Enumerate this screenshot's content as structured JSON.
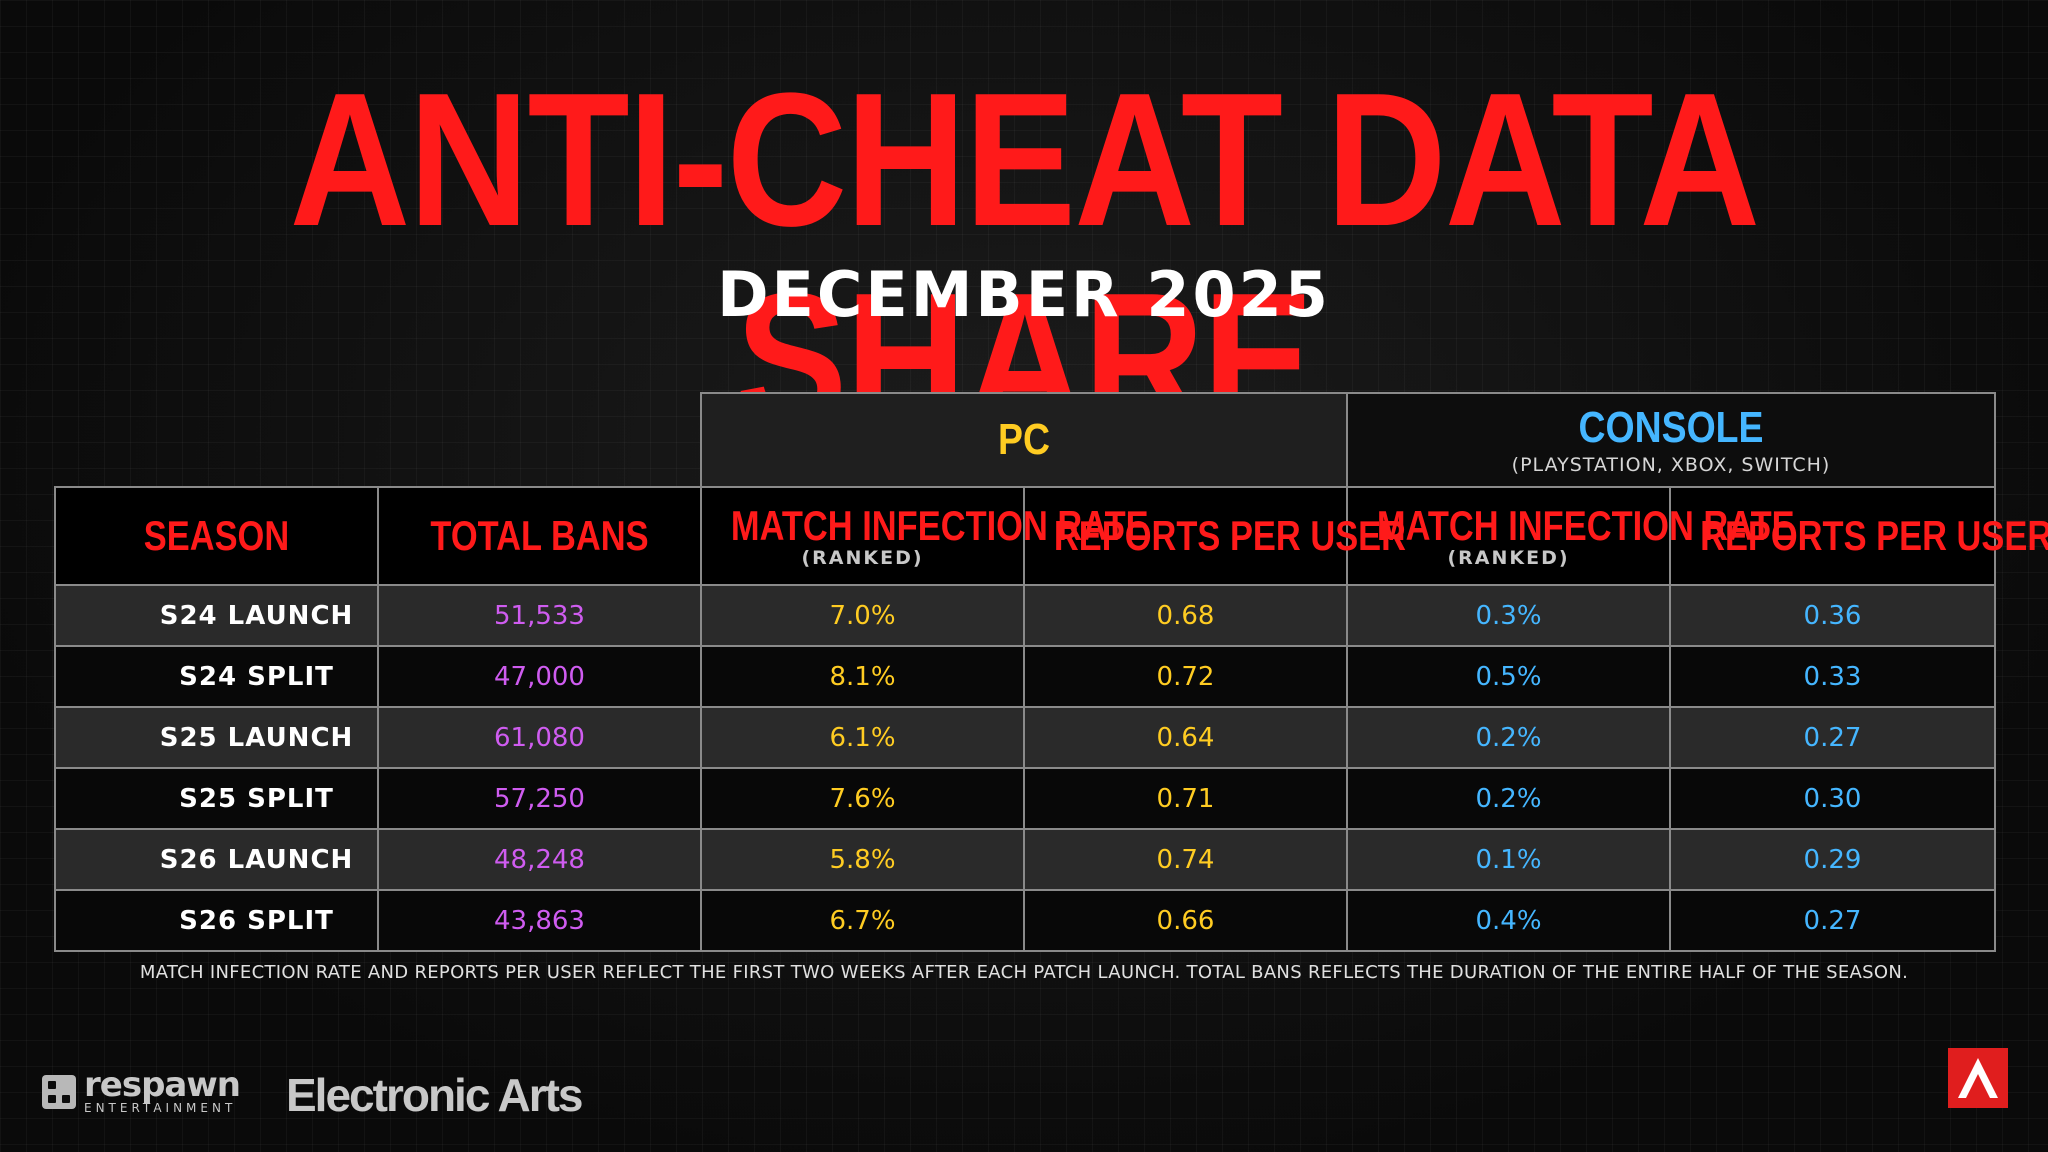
{
  "title": "ANTI-CHEAT DATA SHARE",
  "subtitle": "DECEMBER 2025",
  "groups": {
    "pc": {
      "name": "PC",
      "sub": ""
    },
    "console": {
      "name": "CONSOLE",
      "sub": "(PLAYSTATION, XBOX, SWITCH)"
    }
  },
  "headers": {
    "season": "SEASON",
    "total_bans": "TOTAL BANS",
    "pc_mir": "MATCH INFECTION RATE",
    "pc_mir_sub": "(RANKED)",
    "pc_rpu": "REPORTS PER USER",
    "con_mir": "MATCH INFECTION RATE",
    "con_mir_sub": "(RANKED)",
    "con_rpu": "REPORTS PER USER"
  },
  "rows": [
    {
      "season": "S24 LAUNCH",
      "bans": "51,533",
      "pc_mir": "7.0%",
      "pc_rpu": "0.68",
      "con_mir": "0.3%",
      "con_rpu": "0.36"
    },
    {
      "season": "S24 SPLIT",
      "bans": "47,000",
      "pc_mir": "8.1%",
      "pc_rpu": "0.72",
      "con_mir": "0.5%",
      "con_rpu": "0.33"
    },
    {
      "season": "S25 LAUNCH",
      "bans": "61,080",
      "pc_mir": "6.1%",
      "pc_rpu": "0.64",
      "con_mir": "0.2%",
      "con_rpu": "0.27"
    },
    {
      "season": "S25 SPLIT",
      "bans": "57,250",
      "pc_mir": "7.6%",
      "pc_rpu": "0.71",
      "con_mir": "0.2%",
      "con_rpu": "0.30"
    },
    {
      "season": "S26 LAUNCH",
      "bans": "48,248",
      "pc_mir": "5.8%",
      "pc_rpu": "0.74",
      "con_mir": "0.1%",
      "con_rpu": "0.29"
    },
    {
      "season": "S26 SPLIT",
      "bans": "43,863",
      "pc_mir": "6.7%",
      "pc_rpu": "0.66",
      "con_mir": "0.4%",
      "con_rpu": "0.27"
    }
  ],
  "footnote": "MATCH INFECTION RATE AND REPORTS PER USER REFLECT THE FIRST TWO WEEKS AFTER EACH PATCH LAUNCH.  TOTAL BANS REFLECTS THE DURATION OF THE ENTIRE HALF OF THE SEASON.",
  "logos": {
    "respawn": "respawn",
    "respawn_sub": "ENTERTAINMENT",
    "ea": "Electronic Arts",
    "apex_icon": "apex-legends-logo"
  },
  "colors": {
    "title": "#ff1a1a",
    "pc": "#ffcc22",
    "console": "#45b6ff",
    "bans": "#cf5cf0"
  }
}
